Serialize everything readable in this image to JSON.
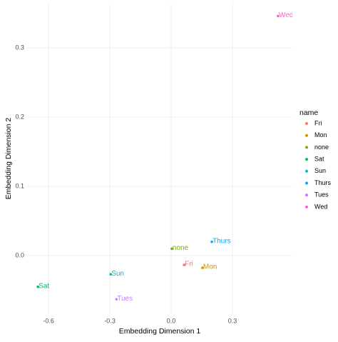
{
  "chart_data": {
    "type": "scatter",
    "xlabel": "Embedding Dimension 1",
    "ylabel": "Embedding Dimension 2",
    "legend_title": "name",
    "legend": "right",
    "grid": true,
    "xlim": [
      -0.705,
      0.593
    ],
    "ylim": [
      -0.0845,
      0.364
    ],
    "xticks": [
      -0.6,
      -0.3,
      {
        "value": 0,
        "label": "0.0"
      },
      0.3
    ],
    "yticks": [
      {
        "value": 0,
        "label": "0.0"
      },
      0.1,
      0.2,
      0.3
    ],
    "series": [
      {
        "name": "Fri",
        "color": "#F8766D",
        "x": [
          0.063
        ],
        "values": [
          -0.0134
        ]
      },
      {
        "name": "Mon",
        "color": "#CD9600",
        "x": [
          0.153
        ],
        "values": [
          -0.0175
        ]
      },
      {
        "name": "none",
        "color": "#7CAE00",
        "x": [
          0.003
        ],
        "values": [
          0.01
        ]
      },
      {
        "name": "Sat",
        "color": "#00BE67",
        "x": [
          -0.652
        ],
        "values": [
          -0.045
        ]
      },
      {
        "name": "Sun",
        "color": "#00BFC4",
        "x": [
          -0.296
        ],
        "values": [
          -0.027
        ]
      },
      {
        "name": "Thurs",
        "color": "#00A9FF",
        "x": [
          0.199
        ],
        "values": [
          0.02
        ]
      },
      {
        "name": "Tues",
        "color": "#C77CFF",
        "x": [
          -0.268
        ],
        "values": [
          -0.063
        ]
      },
      {
        "name": "Wed",
        "color": "#FF61CC",
        "x": [
          0.523
        ],
        "values": [
          0.346
        ]
      }
    ]
  }
}
